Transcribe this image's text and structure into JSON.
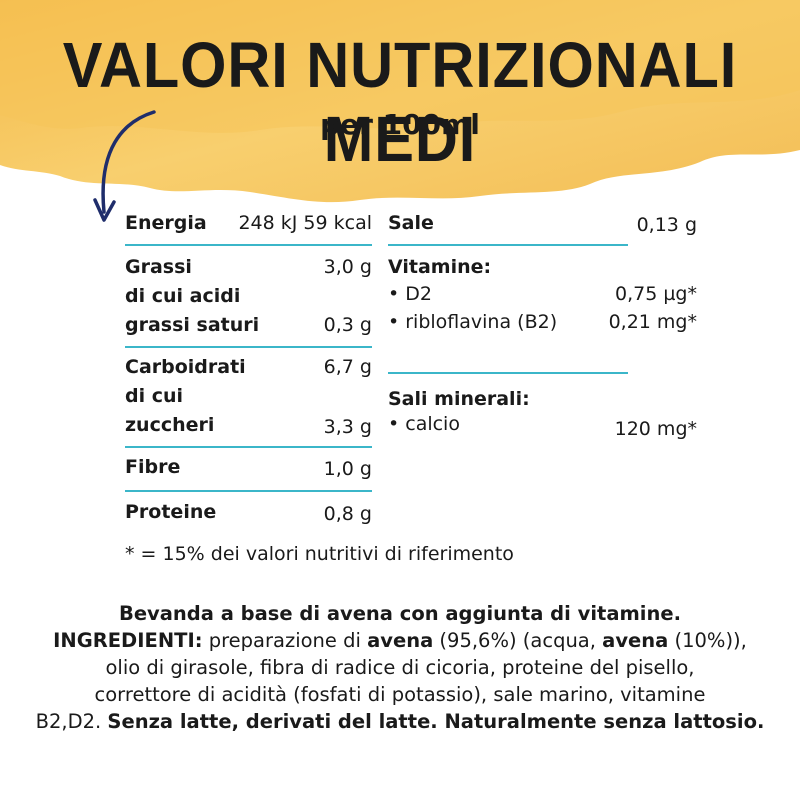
{
  "header": {
    "title": "VALORI NUTRIZIONALI MEDI",
    "subtitle": "per 100ml",
    "banner_color": "#f6c45a"
  },
  "left_table": {
    "energia": {
      "label": "Energia",
      "value": "248 kJ 59 kcal"
    },
    "grassi": {
      "label": "Grassi",
      "value": "3,0 g"
    },
    "di_cui_acidi": {
      "label": "di cui acidi"
    },
    "grassi_saturi": {
      "label": "grassi saturi",
      "value": "0,3 g"
    },
    "carboidrati": {
      "label": "Carboidrati",
      "value": "6,7 g"
    },
    "di_cui": {
      "label": "di cui"
    },
    "zuccheri": {
      "label": "zuccheri",
      "value": "3,3 g"
    },
    "fibre": {
      "label": "Fibre",
      "value": "1,0 g"
    },
    "proteine": {
      "label": "Proteine",
      "value": "0,8 g"
    }
  },
  "right_table": {
    "sale": {
      "label": "Sale",
      "value": "0,13 g"
    },
    "vitamine": {
      "label": "Vitamine:"
    },
    "d2": {
      "label": "• D2",
      "value": "0,75 µg*"
    },
    "riboflavina": {
      "label": "• ribloflavina (B2)",
      "value": "0,21 mg*"
    },
    "sali_minerali": {
      "label": "Sali minerali:"
    },
    "calcio": {
      "label": "• calcio",
      "value": "120 mg*"
    }
  },
  "footnote": "* = 15% dei valori nutritivi di riferimento",
  "ingredients": {
    "line1": "Bevanda a base di avena con aggiunta di vitamine.",
    "label": "INGREDIENTI:",
    "seg1": " preparazione di ",
    "avena1": "avena",
    "seg2": " (95,6%) (acqua, ",
    "avena2": "avena",
    "seg3": " (10%)),",
    "line3": "olio di girasole, fibra di radice di cicoria, proteine del pisello,",
    "line4": "correttore di acidità (fosfati di potassio), sale marino, vitamine",
    "line5_plain": "B2,D2. ",
    "line5_bold": "Senza latte, derivati del latte. Naturalmente senza lattosio."
  },
  "colors": {
    "rule": "#3bb6c9",
    "arrow": "#1f2d6b",
    "text": "#1a1a1a"
  }
}
